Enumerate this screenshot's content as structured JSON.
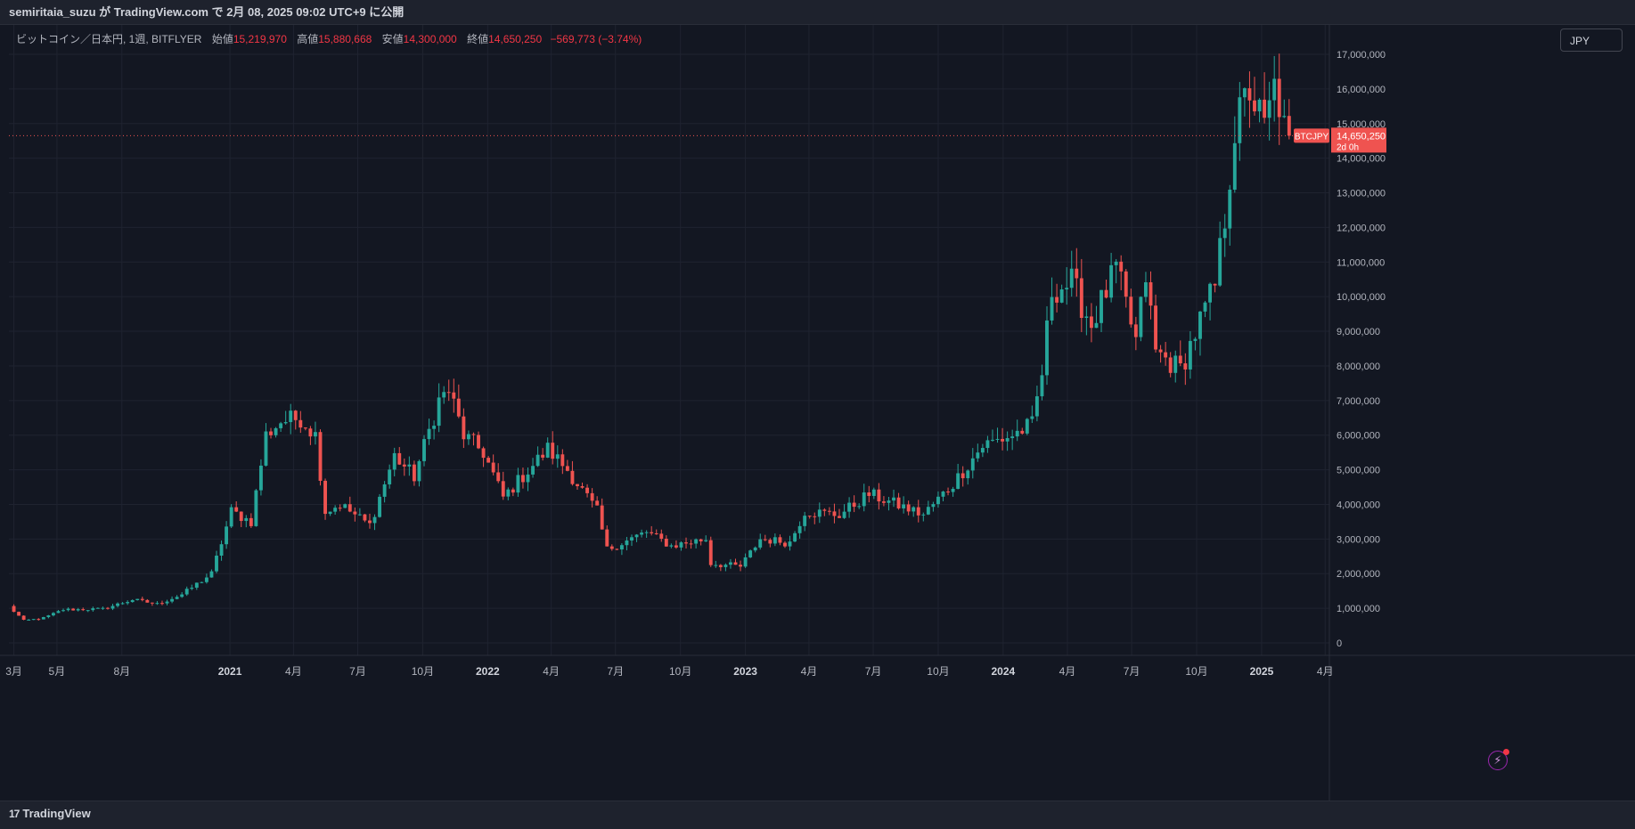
{
  "header": {
    "published_text": "semiritaia_suzu が TradingView.com で 2月 08, 2025 09:02 UTC+9 に公開"
  },
  "legend": {
    "symbol": "ビットコイン／日本円, 1週, BITFLYER",
    "open_label": "始値",
    "open_value": "15,219,970",
    "high_label": "高値",
    "high_value": "15,880,668",
    "low_label": "安値",
    "low_value": "14,300,000",
    "close_label": "終値",
    "close_value": "14,650,250",
    "change": "−569,773 (−3.74%)"
  },
  "currency_button": {
    "label": "JPY"
  },
  "price_tag": {
    "symbol": "BTCJPY",
    "price": "14,650,250",
    "countdown": "2d 0h"
  },
  "footer": {
    "brand": "TradingView",
    "brand_logo": "17"
  },
  "colors": {
    "up": "#26a69a",
    "down": "#ef5350",
    "background": "#131722",
    "grid": "#1f2330"
  },
  "chart_data": {
    "type": "candlestick",
    "title": "ビットコイン／日本円, 1週, BITFLYER",
    "ylim": [
      0,
      17000000
    ],
    "y_ticks": [
      {
        "value": 17000000,
        "label": "17,000,000"
      },
      {
        "value": 16000000,
        "label": "16,000,000"
      },
      {
        "value": 15000000,
        "label": "15,000,000"
      },
      {
        "value": 14000000,
        "label": "14,000,000"
      },
      {
        "value": 13000000,
        "label": "13,000,000"
      },
      {
        "value": 12000000,
        "label": "12,000,000"
      },
      {
        "value": 11000000,
        "label": "11,000,000"
      },
      {
        "value": 10000000,
        "label": "10,000,000"
      },
      {
        "value": 9000000,
        "label": "9,000,000"
      },
      {
        "value": 8000000,
        "label": "8,000,000"
      },
      {
        "value": 7000000,
        "label": "7,000,000"
      },
      {
        "value": 6000000,
        "label": "6,000,000"
      },
      {
        "value": 5000000,
        "label": "5,000,000"
      },
      {
        "value": 4000000,
        "label": "4,000,000"
      },
      {
        "value": 3000000,
        "label": "3,000,000"
      },
      {
        "value": 2000000,
        "label": "2,000,000"
      },
      {
        "value": 1000000,
        "label": "1,000,000"
      },
      {
        "value": 0,
        "label": "0"
      }
    ],
    "x_ticks": [
      {
        "date": "2020-03-01",
        "label": "3月",
        "bold": false
      },
      {
        "date": "2020-05-01",
        "label": "5月",
        "bold": false
      },
      {
        "date": "2020-08-01",
        "label": "8月",
        "bold": false
      },
      {
        "date": "2021-01-01",
        "label": "2021",
        "bold": true
      },
      {
        "date": "2021-04-01",
        "label": "4月",
        "bold": false
      },
      {
        "date": "2021-07-01",
        "label": "7月",
        "bold": false
      },
      {
        "date": "2021-10-01",
        "label": "10月",
        "bold": false
      },
      {
        "date": "2022-01-01",
        "label": "2022",
        "bold": true
      },
      {
        "date": "2022-04-01",
        "label": "4月",
        "bold": false
      },
      {
        "date": "2022-07-01",
        "label": "7月",
        "bold": false
      },
      {
        "date": "2022-10-01",
        "label": "10月",
        "bold": false
      },
      {
        "date": "2023-01-01",
        "label": "2023",
        "bold": true
      },
      {
        "date": "2023-04-01",
        "label": "4月",
        "bold": false
      },
      {
        "date": "2023-07-01",
        "label": "7月",
        "bold": false
      },
      {
        "date": "2023-10-01",
        "label": "10月",
        "bold": false
      },
      {
        "date": "2024-01-01",
        "label": "2024",
        "bold": true
      },
      {
        "date": "2024-04-01",
        "label": "4月",
        "bold": false
      },
      {
        "date": "2024-07-01",
        "label": "7月",
        "bold": false
      },
      {
        "date": "2024-10-01",
        "label": "10月",
        "bold": false
      },
      {
        "date": "2025-01-01",
        "label": "2025",
        "bold": true
      },
      {
        "date": "2025-04-01",
        "label": "4月",
        "bold": false
      }
    ],
    "x_range": [
      "2020-02-23",
      "2025-04-07"
    ],
    "current_price": 14650250,
    "anchors": [
      [
        "2020-02-23",
        1050000
      ],
      [
        "2020-03-15",
        640000
      ],
      [
        "2020-04-12",
        720000
      ],
      [
        "2020-05-10",
        960000
      ],
      [
        "2020-07-05",
        980000
      ],
      [
        "2020-08-16",
        1250000
      ],
      [
        "2020-09-20",
        1120000
      ],
      [
        "2020-10-25",
        1400000
      ],
      [
        "2020-12-06",
        2000000
      ],
      [
        "2021-01-03",
        3800000
      ],
      [
        "2021-01-31",
        3500000
      ],
      [
        "2021-02-21",
        6000000
      ],
      [
        "2021-03-14",
        6400000
      ],
      [
        "2021-04-11",
        6500000
      ],
      [
        "2021-05-02",
        6000000
      ],
      [
        "2021-05-16",
        3800000
      ],
      [
        "2021-06-06",
        4000000
      ],
      [
        "2021-07-18",
        3400000
      ],
      [
        "2021-08-22",
        5400000
      ],
      [
        "2021-09-19",
        4800000
      ],
      [
        "2021-10-24",
        7000000
      ],
      [
        "2021-11-07",
        7300000
      ],
      [
        "2021-11-28",
        6000000
      ],
      [
        "2021-12-26",
        5500000
      ],
      [
        "2022-01-23",
        4200000
      ],
      [
        "2022-03-27",
        5600000
      ],
      [
        "2022-04-24",
        5000000
      ],
      [
        "2022-06-05",
        3800000
      ],
      [
        "2022-06-19",
        2700000
      ],
      [
        "2022-08-14",
        3200000
      ],
      [
        "2022-09-18",
        2800000
      ],
      [
        "2022-11-06",
        3000000
      ],
      [
        "2022-11-13",
        2300000
      ],
      [
        "2022-12-25",
        2200000
      ],
      [
        "2023-01-22",
        3000000
      ],
      [
        "2023-03-05",
        2900000
      ],
      [
        "2023-03-26",
        3800000
      ],
      [
        "2023-05-14",
        3700000
      ],
      [
        "2023-06-25",
        4300000
      ],
      [
        "2023-09-10",
        3700000
      ],
      [
        "2023-10-22",
        4600000
      ],
      [
        "2023-12-03",
        5700000
      ],
      [
        "2024-01-14",
        6000000
      ],
      [
        "2024-02-11",
        6300000
      ],
      [
        "2024-02-25",
        7800000
      ],
      [
        "2024-03-10",
        10200000
      ],
      [
        "2024-04-07",
        10400000
      ],
      [
        "2024-05-05",
        9200000
      ],
      [
        "2024-06-09",
        10800000
      ],
      [
        "2024-07-07",
        8700000
      ],
      [
        "2024-07-21",
        10600000
      ],
      [
        "2024-08-04",
        8400000
      ],
      [
        "2024-09-08",
        7900000
      ],
      [
        "2024-10-06",
        9300000
      ],
      [
        "2024-10-27",
        10300000
      ],
      [
        "2024-11-10",
        12300000
      ],
      [
        "2024-11-24",
        14800000
      ],
      [
        "2024-12-15",
        16000000
      ],
      [
        "2025-01-05",
        14800000
      ],
      [
        "2025-01-19",
        16000000
      ],
      [
        "2025-02-02",
        15219970
      ],
      [
        "2025-02-09",
        14650250
      ]
    ]
  }
}
